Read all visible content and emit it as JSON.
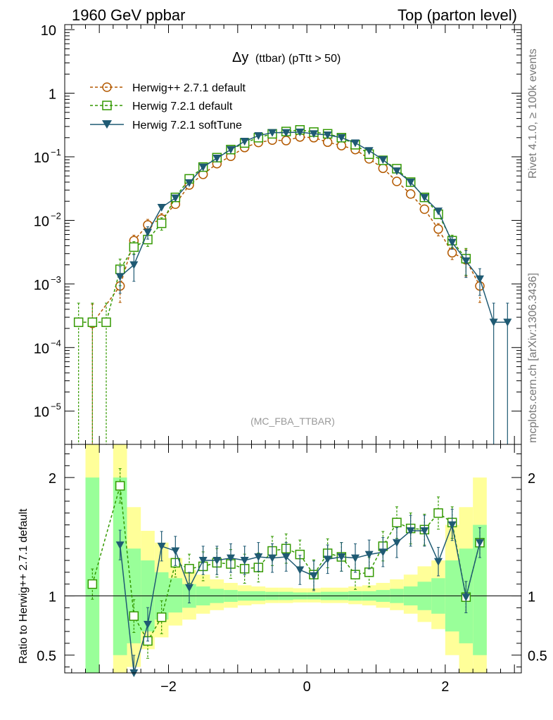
{
  "header": {
    "left": "1960 GeV ppbar",
    "right": "Top (parton level)",
    "side_top": "Rivet 4.1.0, ≥ 100k events",
    "side_bottom": "mcplots.cern.ch [arXiv:1306.3436]"
  },
  "colors": {
    "herwigpp": "#b35900",
    "herwig721": "#339900",
    "softtune": "#1f5a73",
    "band_inner": "#99ff99",
    "band_outer": "#ffff99"
  },
  "chart_data": [
    {
      "type": "line",
      "panel": "main",
      "title": "Δy",
      "title_suffix": "(ttbar) (pTtt > 50)",
      "watermark": "(MC_FBA_TTBAR)",
      "yscale": "log",
      "ylim": [
        3e-06,
        12
      ],
      "xlim": [
        -3.5,
        3.1
      ],
      "yticks": [
        {
          "v": 1e-05,
          "base": "10",
          "exp": "−5"
        },
        {
          "v": 0.0001,
          "base": "10",
          "exp": "−4"
        },
        {
          "v": 0.001,
          "base": "10",
          "exp": "−3"
        },
        {
          "v": 0.01,
          "base": "10",
          "exp": "−2"
        },
        {
          "v": 0.1,
          "base": "10",
          "exp": "−1"
        },
        {
          "v": 1,
          "base": "1",
          "exp": ""
        },
        {
          "v": 10,
          "base": "10",
          "exp": ""
        }
      ],
      "legend_position": "top-left",
      "series": [
        {
          "name": "Herwig++ 2.7.1 default",
          "marker": "circle-open",
          "style": "dashed",
          "x": [
            -3.1,
            -2.7,
            -2.5,
            -2.3,
            -2.1,
            -1.9,
            -1.7,
            -1.5,
            -1.3,
            -1.1,
            -0.9,
            -0.7,
            -0.5,
            -0.3,
            -0.1,
            0.1,
            0.3,
            0.5,
            0.7,
            0.9,
            1.1,
            1.3,
            1.5,
            1.7,
            1.9,
            2.1,
            2.3,
            2.5
          ],
          "y": [
            0.00024,
            0.00093,
            0.0048,
            0.0085,
            0.0105,
            0.018,
            0.036,
            0.053,
            0.078,
            0.102,
            0.14,
            0.168,
            0.183,
            0.18,
            0.205,
            0.2,
            0.17,
            0.15,
            0.13,
            0.093,
            0.066,
            0.041,
            0.026,
            0.015,
            0.0073,
            0.0031,
            0.0024,
            0.00093
          ]
        },
        {
          "name": "Herwig 7.2.1 default",
          "marker": "square-open",
          "style": "dashed",
          "x": [
            -3.3,
            -3.1,
            -2.9,
            -2.7,
            -2.5,
            -2.3,
            -2.1,
            -1.9,
            -1.7,
            -1.5,
            -1.3,
            -1.1,
            -0.9,
            -0.7,
            -0.5,
            -0.3,
            -0.1,
            0.1,
            0.3,
            0.5,
            0.7,
            0.9,
            1.1,
            1.3,
            1.5,
            1.7,
            1.9,
            2.1,
            2.3
          ],
          "y": [
            0.00025,
            0.00025,
            0.00025,
            0.0017,
            0.0038,
            0.005,
            0.009,
            0.023,
            0.045,
            0.069,
            0.097,
            0.13,
            0.165,
            0.2,
            0.23,
            0.25,
            0.265,
            0.245,
            0.23,
            0.2,
            0.155,
            0.11,
            0.088,
            0.065,
            0.04,
            0.023,
            0.0125,
            0.0048,
            0.0025
          ]
        },
        {
          "name": "Herwig 7.2.1 softTune",
          "marker": "triangle-down",
          "style": "solid",
          "x": [
            -2.7,
            -2.5,
            -2.3,
            -2.1,
            -1.9,
            -1.7,
            -1.5,
            -1.3,
            -1.1,
            -0.9,
            -0.7,
            -0.5,
            -0.3,
            -0.1,
            0.1,
            0.3,
            0.5,
            0.7,
            0.9,
            1.1,
            1.3,
            1.5,
            1.7,
            1.9,
            2.1,
            2.3,
            2.5,
            2.7,
            2.9
          ],
          "y": [
            0.0013,
            0.002,
            0.0065,
            0.016,
            0.0225,
            0.039,
            0.069,
            0.095,
            0.13,
            0.175,
            0.215,
            0.24,
            0.24,
            0.245,
            0.23,
            0.22,
            0.2,
            0.165,
            0.125,
            0.09,
            0.06,
            0.04,
            0.023,
            0.014,
            0.0045,
            0.0023,
            0.0012,
            0.00025,
            0.00025
          ]
        }
      ]
    },
    {
      "type": "line",
      "panel": "ratio",
      "ylabel": "Ratio to Herwig++ 2.7.1 default",
      "ylim": [
        0.35,
        2.28
      ],
      "xlim": [
        -3.5,
        3.1
      ],
      "yticks": [
        0.5,
        1,
        2
      ],
      "xticks": [
        {
          "v": -2,
          "label": "−2"
        },
        {
          "v": 0,
          "label": "0"
        },
        {
          "v": 2,
          "label": "2"
        }
      ],
      "band_bins": [
        {
          "x0": -3.2,
          "x1": -3.0,
          "inner": [
            0.35,
            2.0
          ],
          "outer": [
            0.35,
            2.28
          ]
        },
        {
          "x0": -2.8,
          "x1": -2.6,
          "inner": [
            0.5,
            2.0
          ],
          "outer": [
            0.35,
            2.28
          ]
        },
        {
          "x0": -2.6,
          "x1": -2.4,
          "inner": [
            0.6,
            1.4
          ],
          "outer": [
            0.4,
            1.75
          ]
        },
        {
          "x0": -2.4,
          "x1": -2.2,
          "inner": [
            0.7,
            1.3
          ],
          "outer": [
            0.55,
            1.55
          ]
        },
        {
          "x0": -2.2,
          "x1": -2.0,
          "inner": [
            0.8,
            1.2
          ],
          "outer": [
            0.65,
            1.45
          ]
        },
        {
          "x0": -2.0,
          "x1": -1.8,
          "inner": [
            0.86,
            1.15
          ],
          "outer": [
            0.75,
            1.32
          ]
        },
        {
          "x0": -1.8,
          "x1": -1.6,
          "inner": [
            0.9,
            1.1
          ],
          "outer": [
            0.8,
            1.22
          ]
        },
        {
          "x0": -1.6,
          "x1": -1.4,
          "inner": [
            0.92,
            1.08
          ],
          "outer": [
            0.85,
            1.18
          ]
        },
        {
          "x0": -1.4,
          "x1": -1.2,
          "inner": [
            0.94,
            1.06
          ],
          "outer": [
            0.88,
            1.14
          ]
        },
        {
          "x0": -1.2,
          "x1": -1.0,
          "inner": [
            0.95,
            1.05
          ],
          "outer": [
            0.9,
            1.11
          ]
        },
        {
          "x0": -1.0,
          "x1": -0.8,
          "inner": [
            0.96,
            1.04
          ],
          "outer": [
            0.92,
            1.09
          ]
        },
        {
          "x0": -0.8,
          "x1": -0.6,
          "inner": [
            0.96,
            1.04
          ],
          "outer": [
            0.93,
            1.08
          ]
        },
        {
          "x0": -0.6,
          "x1": -0.4,
          "inner": [
            0.965,
            1.035
          ],
          "outer": [
            0.94,
            1.07
          ]
        },
        {
          "x0": -0.4,
          "x1": -0.2,
          "inner": [
            0.965,
            1.035
          ],
          "outer": [
            0.94,
            1.07
          ]
        },
        {
          "x0": -0.2,
          "x1": 0.0,
          "inner": [
            0.97,
            1.03
          ],
          "outer": [
            0.945,
            1.065
          ]
        },
        {
          "x0": 0.0,
          "x1": 0.2,
          "inner": [
            0.97,
            1.03
          ],
          "outer": [
            0.945,
            1.065
          ]
        },
        {
          "x0": 0.2,
          "x1": 0.4,
          "inner": [
            0.965,
            1.035
          ],
          "outer": [
            0.94,
            1.07
          ]
        },
        {
          "x0": 0.4,
          "x1": 0.6,
          "inner": [
            0.965,
            1.035
          ],
          "outer": [
            0.94,
            1.07
          ]
        },
        {
          "x0": 0.6,
          "x1": 0.8,
          "inner": [
            0.96,
            1.04
          ],
          "outer": [
            0.93,
            1.08
          ]
        },
        {
          "x0": 0.8,
          "x1": 1.0,
          "inner": [
            0.96,
            1.04
          ],
          "outer": [
            0.92,
            1.09
          ]
        },
        {
          "x0": 1.0,
          "x1": 1.2,
          "inner": [
            0.95,
            1.05
          ],
          "outer": [
            0.9,
            1.11
          ]
        },
        {
          "x0": 1.2,
          "x1": 1.4,
          "inner": [
            0.94,
            1.06
          ],
          "outer": [
            0.88,
            1.14
          ]
        },
        {
          "x0": 1.4,
          "x1": 1.6,
          "inner": [
            0.92,
            1.08
          ],
          "outer": [
            0.85,
            1.18
          ]
        },
        {
          "x0": 1.6,
          "x1": 1.8,
          "inner": [
            0.88,
            1.12
          ],
          "outer": [
            0.78,
            1.25
          ]
        },
        {
          "x0": 1.8,
          "x1": 2.0,
          "inner": [
            0.85,
            1.15
          ],
          "outer": [
            0.72,
            1.3
          ]
        },
        {
          "x0": 2.0,
          "x1": 2.2,
          "inner": [
            0.7,
            1.3
          ],
          "outer": [
            0.5,
            1.6
          ]
        },
        {
          "x0": 2.2,
          "x1": 2.4,
          "inner": [
            0.6,
            1.4
          ],
          "outer": [
            0.35,
            1.75
          ]
        },
        {
          "x0": 2.4,
          "x1": 2.6,
          "inner": [
            0.5,
            1.6
          ],
          "outer": [
            0.35,
            2.0
          ]
        }
      ],
      "series": [
        {
          "name": "Herwig 7.2.1 default",
          "marker": "square-open",
          "style": "dashed",
          "x": [
            -3.1,
            -2.7,
            -2.5,
            -2.3,
            -2.1,
            -1.9,
            -1.7,
            -1.5,
            -1.3,
            -1.1,
            -0.9,
            -0.7,
            -0.5,
            -0.3,
            -0.1,
            0.1,
            0.3,
            0.5,
            0.7,
            0.9,
            1.1,
            1.3,
            1.5,
            1.7,
            1.9,
            2.1,
            2.3,
            2.5
          ],
          "y": [
            1.1,
            1.93,
            0.83,
            0.62,
            0.82,
            1.28,
            1.23,
            1.25,
            1.28,
            1.27,
            1.23,
            1.24,
            1.38,
            1.4,
            1.35,
            1.18,
            1.36,
            1.33,
            1.18,
            1.2,
            1.42,
            1.62,
            1.57,
            1.56,
            1.7,
            1.62,
            0.99,
            1.45
          ]
        },
        {
          "name": "Herwig 7.2.1 softTune",
          "marker": "triangle-down",
          "style": "solid",
          "x": [
            -2.7,
            -2.5,
            -2.3,
            -2.1,
            -1.9,
            -1.7,
            -1.5,
            -1.3,
            -1.1,
            -0.9,
            -0.7,
            -0.5,
            -0.3,
            -0.1,
            0.1,
            0.3,
            0.5,
            0.7,
            0.9,
            1.1,
            1.3,
            1.5,
            1.7,
            1.9,
            2.1,
            2.3,
            2.5
          ],
          "y": [
            1.43,
            0.34,
            0.76,
            1.42,
            1.38,
            1.07,
            1.3,
            1.3,
            1.32,
            1.3,
            1.33,
            1.32,
            1.33,
            1.22,
            1.17,
            1.31,
            1.33,
            1.32,
            1.35,
            1.37,
            1.45,
            1.55,
            1.55,
            1.29,
            1.6,
            0.99,
            1.45
          ]
        }
      ]
    }
  ]
}
